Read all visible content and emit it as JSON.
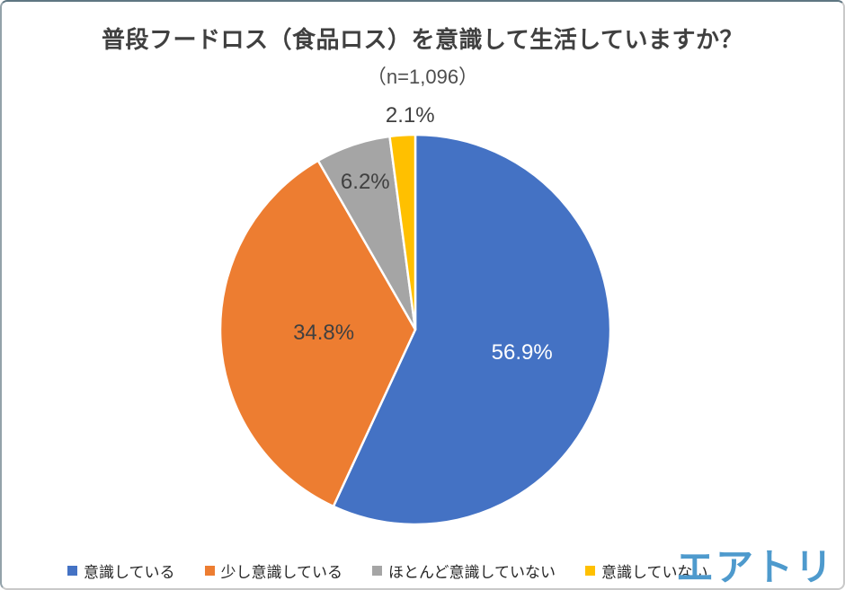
{
  "chart_data": {
    "type": "pie",
    "title": "普段フードロス（食品ロス）を意識して生活していますか？",
    "subtitle": "（n=1,096）",
    "categories": [
      "意識している",
      "少し意識している",
      "ほとんど意識していない",
      "意識していない"
    ],
    "values": [
      56.9,
      34.8,
      6.2,
      2.1
    ],
    "data_labels": [
      "56.9%",
      "34.8%",
      "6.2%",
      "2.1%"
    ],
    "colors": [
      "#4472C4",
      "#ED7D31",
      "#A5A5A5",
      "#FFC000"
    ],
    "data_label_colors": [
      "#FFFFFF",
      "#404040",
      "#404040",
      "#404040"
    ],
    "start_angle_deg": 0,
    "direction": "clockwise",
    "legend_position": "bottom",
    "grid": false
  },
  "branding": {
    "logo_text": "エアトリ",
    "logo_color": "#4E9ACD"
  }
}
